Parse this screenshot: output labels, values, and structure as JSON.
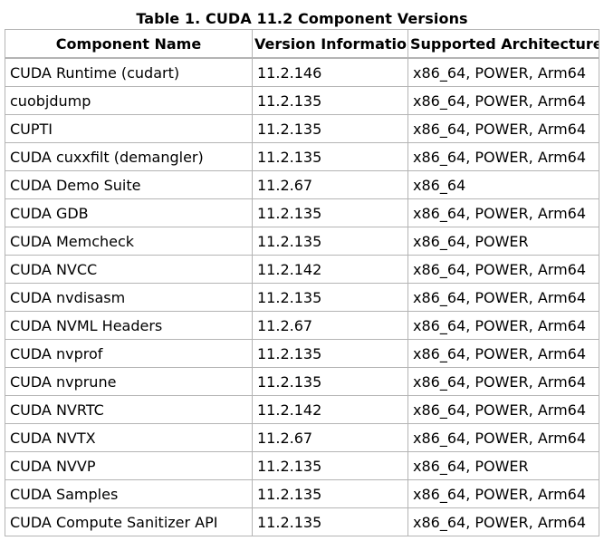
{
  "table": {
    "caption": "Table 1. CUDA 11.2 Component Versions",
    "headers": [
      "Component Name",
      "Version Information",
      "Supported Architectures"
    ],
    "rows": [
      [
        "CUDA Runtime (cudart)",
        "11.2.146",
        "x86_64, POWER, Arm64"
      ],
      [
        "cuobjdump",
        "11.2.135",
        "x86_64, POWER, Arm64"
      ],
      [
        "CUPTI",
        "11.2.135",
        "x86_64, POWER, Arm64"
      ],
      [
        "CUDA cuxxfilt (demangler)",
        "11.2.135",
        "x86_64, POWER, Arm64"
      ],
      [
        "CUDA Demo Suite",
        "11.2.67",
        "x86_64"
      ],
      [
        "CUDA GDB",
        "11.2.135",
        "x86_64, POWER, Arm64"
      ],
      [
        "CUDA Memcheck",
        "11.2.135",
        "x86_64, POWER"
      ],
      [
        "CUDA NVCC",
        "11.2.142",
        "x86_64, POWER, Arm64"
      ],
      [
        "CUDA nvdisasm",
        "11.2.135",
        "x86_64, POWER, Arm64"
      ],
      [
        "CUDA NVML Headers",
        "11.2.67",
        "x86_64, POWER, Arm64"
      ],
      [
        "CUDA nvprof",
        "11.2.135",
        "x86_64, POWER, Arm64"
      ],
      [
        "CUDA nvprune",
        "11.2.135",
        "x86_64, POWER, Arm64"
      ],
      [
        "CUDA NVRTC",
        "11.2.142",
        "x86_64, POWER, Arm64"
      ],
      [
        "CUDA NVTX",
        "11.2.67",
        "x86_64, POWER, Arm64"
      ],
      [
        "CUDA NVVP",
        "11.2.135",
        "x86_64, POWER"
      ],
      [
        "CUDA Samples",
        "11.2.135",
        "x86_64, POWER, Arm64"
      ],
      [
        "CUDA Compute Sanitizer API",
        "11.2.135",
        "x86_64, POWER, Arm64"
      ]
    ]
  }
}
